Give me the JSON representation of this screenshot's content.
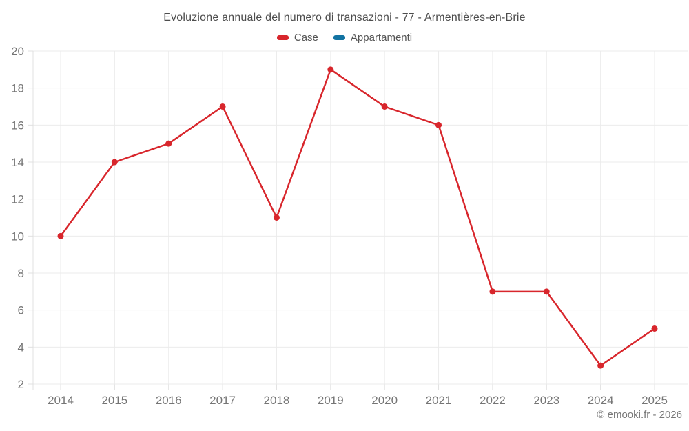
{
  "title": "Evoluzione annuale del numero di transazioni - 77 - Armentières-en-Brie",
  "legend": {
    "items": [
      {
        "label": "Case",
        "color": "#d8262c"
      },
      {
        "label": "Appartamenti",
        "color": "#1273a2"
      }
    ]
  },
  "footer": {
    "copyright": "© emooki.fr - 2026"
  },
  "chart_data": {
    "type": "line",
    "title": "Evoluzione annuale del numero di transazioni - 77 - Armentières-en-Brie",
    "x": [
      2014,
      2015,
      2016,
      2017,
      2018,
      2019,
      2020,
      2021,
      2022,
      2023,
      2024,
      2025
    ],
    "series": [
      {
        "name": "Case",
        "color": "#d8262c",
        "values": [
          10,
          14,
          15,
          17,
          11,
          19,
          17,
          16,
          7,
          7,
          3,
          5
        ]
      },
      {
        "name": "Appartamenti",
        "color": "#1273a2",
        "values": []
      }
    ],
    "xlabel": "",
    "ylabel": "",
    "ylim": [
      2,
      20
    ],
    "ytick_step": 2,
    "grid": true,
    "legend_position": "top",
    "marker_radius": 4.5,
    "line_width": 2.5,
    "colors": {
      "grid_line": "#ebebeb",
      "axis_line": "#e0e0e0",
      "tick_label": "#757575"
    }
  }
}
